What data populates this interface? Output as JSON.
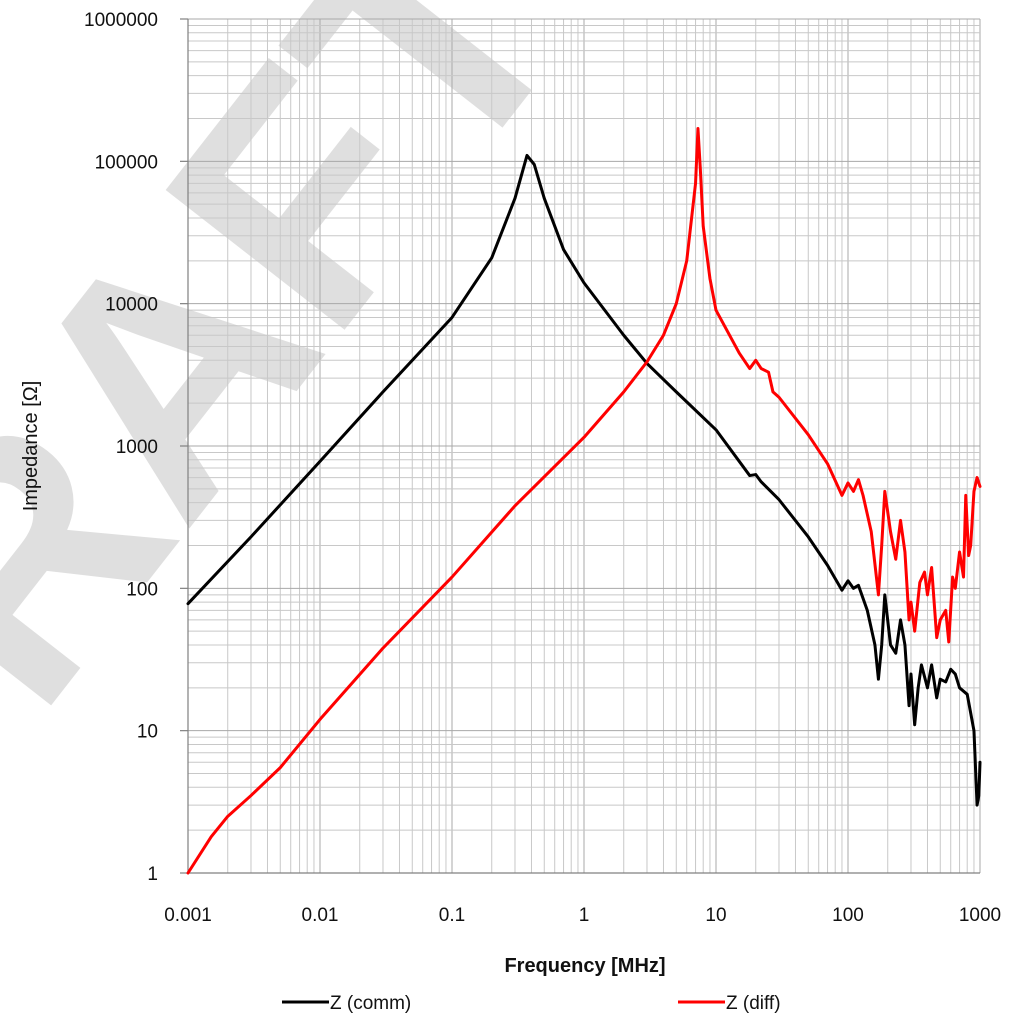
{
  "watermark": {
    "text": "DRAFT",
    "color": "#d9d9d9"
  },
  "chart_data": {
    "type": "line",
    "title": "",
    "xlabel": "Frequency [MHz]",
    "ylabel": "Impedance [Ω]",
    "x_scale": "log",
    "y_scale": "log",
    "xlim": [
      0.001,
      1000
    ],
    "ylim": [
      1,
      1000000
    ],
    "grid": true,
    "legend_position": "bottom",
    "x_ticks": [
      0.001,
      0.01,
      0.1,
      1,
      10,
      100,
      1000
    ],
    "x_tick_labels": [
      "0.001",
      "0.01",
      "0.1",
      "1",
      "10",
      "100",
      "1000"
    ],
    "y_ticks": [
      1,
      10,
      100,
      1000,
      10000,
      100000,
      1000000
    ],
    "y_tick_labels": [
      "1",
      "10",
      "100",
      "1000",
      "10000",
      "100000",
      "1000000"
    ],
    "series": [
      {
        "name": "Z (comm)",
        "color": "#000000",
        "points": [
          [
            0.001,
            78
          ],
          [
            0.003,
            230
          ],
          [
            0.01,
            780
          ],
          [
            0.03,
            2400
          ],
          [
            0.1,
            8000
          ],
          [
            0.2,
            21000
          ],
          [
            0.3,
            55000
          ],
          [
            0.37,
            110000
          ],
          [
            0.42,
            95000
          ],
          [
            0.5,
            55000
          ],
          [
            0.7,
            24000
          ],
          [
            1,
            14000
          ],
          [
            2,
            6000
          ],
          [
            3,
            3800
          ],
          [
            5,
            2400
          ],
          [
            10,
            1300
          ],
          [
            18,
            620
          ],
          [
            20,
            630
          ],
          [
            22,
            560
          ],
          [
            30,
            420
          ],
          [
            50,
            230
          ],
          [
            70,
            145
          ],
          [
            90,
            97
          ],
          [
            100,
            113
          ],
          [
            110,
            100
          ],
          [
            120,
            105
          ],
          [
            140,
            70
          ],
          [
            160,
            40
          ],
          [
            170,
            23
          ],
          [
            180,
            40
          ],
          [
            190,
            90
          ],
          [
            210,
            40
          ],
          [
            230,
            35
          ],
          [
            250,
            60
          ],
          [
            270,
            40
          ],
          [
            290,
            15
          ],
          [
            300,
            25
          ],
          [
            320,
            11
          ],
          [
            340,
            20
          ],
          [
            360,
            29
          ],
          [
            400,
            20
          ],
          [
            430,
            29
          ],
          [
            470,
            17
          ],
          [
            500,
            23
          ],
          [
            550,
            22
          ],
          [
            600,
            27
          ],
          [
            650,
            25
          ],
          [
            700,
            20
          ],
          [
            800,
            18
          ],
          [
            900,
            10
          ],
          [
            950,
            3
          ],
          [
            980,
            3.5
          ],
          [
            1000,
            6
          ]
        ]
      },
      {
        "name": "Z (diff)",
        "color": "#ff0000",
        "points": [
          [
            0.001,
            1
          ],
          [
            0.0015,
            1.8
          ],
          [
            0.002,
            2.5
          ],
          [
            0.003,
            3.5
          ],
          [
            0.005,
            5.5
          ],
          [
            0.01,
            12
          ],
          [
            0.03,
            38
          ],
          [
            0.1,
            120
          ],
          [
            0.3,
            380
          ],
          [
            1,
            1150
          ],
          [
            2,
            2400
          ],
          [
            3,
            3900
          ],
          [
            4,
            6000
          ],
          [
            5,
            10000
          ],
          [
            6,
            20000
          ],
          [
            7,
            70000
          ],
          [
            7.3,
            170000
          ],
          [
            7.6,
            90000
          ],
          [
            8,
            35000
          ],
          [
            9,
            15000
          ],
          [
            10,
            9000
          ],
          [
            15,
            4500
          ],
          [
            18,
            3500
          ],
          [
            20,
            4000
          ],
          [
            22,
            3500
          ],
          [
            25,
            3300
          ],
          [
            27,
            2400
          ],
          [
            30,
            2200
          ],
          [
            50,
            1200
          ],
          [
            70,
            750
          ],
          [
            90,
            450
          ],
          [
            100,
            550
          ],
          [
            110,
            480
          ],
          [
            120,
            580
          ],
          [
            130,
            450
          ],
          [
            150,
            250
          ],
          [
            170,
            90
          ],
          [
            180,
            200
          ],
          [
            190,
            480
          ],
          [
            210,
            250
          ],
          [
            230,
            160
          ],
          [
            250,
            300
          ],
          [
            270,
            180
          ],
          [
            290,
            60
          ],
          [
            300,
            80
          ],
          [
            320,
            50
          ],
          [
            350,
            110
          ],
          [
            380,
            130
          ],
          [
            400,
            90
          ],
          [
            430,
            140
          ],
          [
            470,
            45
          ],
          [
            500,
            60
          ],
          [
            550,
            70
          ],
          [
            580,
            42
          ],
          [
            620,
            120
          ],
          [
            650,
            100
          ],
          [
            700,
            180
          ],
          [
            750,
            120
          ],
          [
            780,
            450
          ],
          [
            820,
            170
          ],
          [
            850,
            200
          ],
          [
            900,
            480
          ],
          [
            950,
            600
          ],
          [
            1000,
            520
          ]
        ]
      }
    ]
  }
}
